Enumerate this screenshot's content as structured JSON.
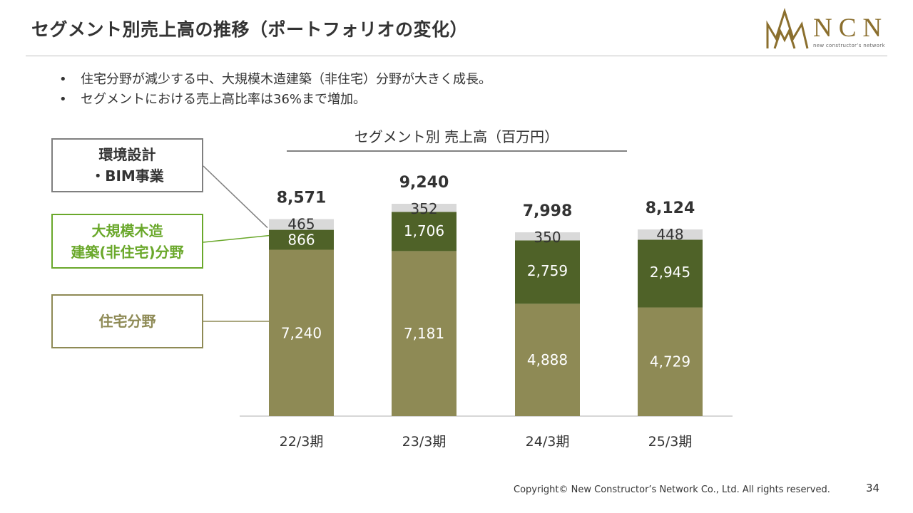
{
  "slide": {
    "title": "セグメント別売上高の推移（ポートフォリオの変化）",
    "bullets": [
      "住宅分野が減少する中、大規模木造建築（非住宅）分野が大きく成長。",
      "セグメントにおける売上高比率は36%まで増加。"
    ],
    "footer": "Copyright© New Constructor’s Network Co., Ltd. All rights reserved.",
    "page_number": "34"
  },
  "logo": {
    "text": "NCN",
    "subtext": "new constructor’s network",
    "color": "#8b6f2e"
  },
  "legend_boxes": {
    "bim": "環境設計\n・BIM事業",
    "wood": "大規模木造\n建築(非住宅)分野",
    "residential": "住宅分野"
  },
  "colors": {
    "residential": "#8e8a55",
    "wood": "#4f6228",
    "bim": "#d9d9d9",
    "wood_label": "#6aa82b"
  },
  "chart_data": {
    "type": "bar",
    "stacked": true,
    "title": "セグメント別 売上高（百万円）",
    "categories": [
      "22/3期",
      "23/3期",
      "24/3期",
      "25/3期"
    ],
    "series": [
      {
        "name": "住宅分野",
        "values": [
          7240,
          7181,
          4888,
          4729
        ]
      },
      {
        "name": "大規模木造建築(非住宅)分野",
        "values": [
          866,
          1706,
          2759,
          2945
        ]
      },
      {
        "name": "環境設計・BIM事業",
        "values": [
          465,
          352,
          350,
          448
        ]
      }
    ],
    "value_labels": [
      [
        "7,240",
        "7,181",
        "4,888",
        "4,729"
      ],
      [
        "866",
        "1,706",
        "2,759",
        "2,945"
      ],
      [
        "465",
        "352",
        "350",
        "448"
      ]
    ],
    "totals": [
      8571,
      9240,
      7998,
      8124
    ],
    "total_labels": [
      "8,571",
      "9,240",
      "7,998",
      "8,124"
    ],
    "ylim": [
      0,
      9240
    ],
    "grid": false,
    "legend": "left"
  }
}
